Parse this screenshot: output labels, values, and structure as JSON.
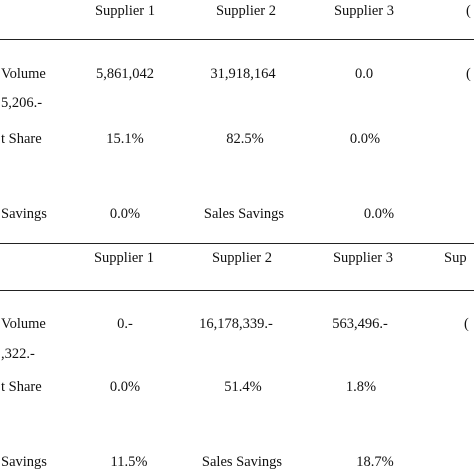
{
  "table_top": {
    "header": [
      "Supplier 1",
      "Supplier 2",
      "Supplier 3"
    ],
    "header_partial": "(",
    "volume_label": "Volume",
    "volume_values": [
      "5,861,042",
      "31,918,164",
      "0.0"
    ],
    "volume_partial": "(",
    "volume_sub": "5,206.-",
    "share_label": "t Share",
    "share_values": [
      "15.1%",
      "82.5%",
      "0.0%"
    ],
    "savings_label": "Savings",
    "savings_values": [
      "0.0%",
      "Sales Savings",
      "0.0%"
    ]
  },
  "table_bottom": {
    "header": [
      "Supplier 1",
      "Supplier 2",
      "Supplier 3"
    ],
    "header_partial": "Sup",
    "volume_label": "Volume",
    "volume_values": [
      "0.-",
      "16,178,339.-",
      "563,496.-"
    ],
    "volume_partial": "(",
    "volume_sub": ",322.-",
    "share_label": "t Share",
    "share_values": [
      "0.0%",
      "51.4%",
      "1.8%"
    ],
    "savings_label": "Savings",
    "savings_values": [
      "11.5%",
      "Sales Savings",
      "18.7%"
    ]
  }
}
